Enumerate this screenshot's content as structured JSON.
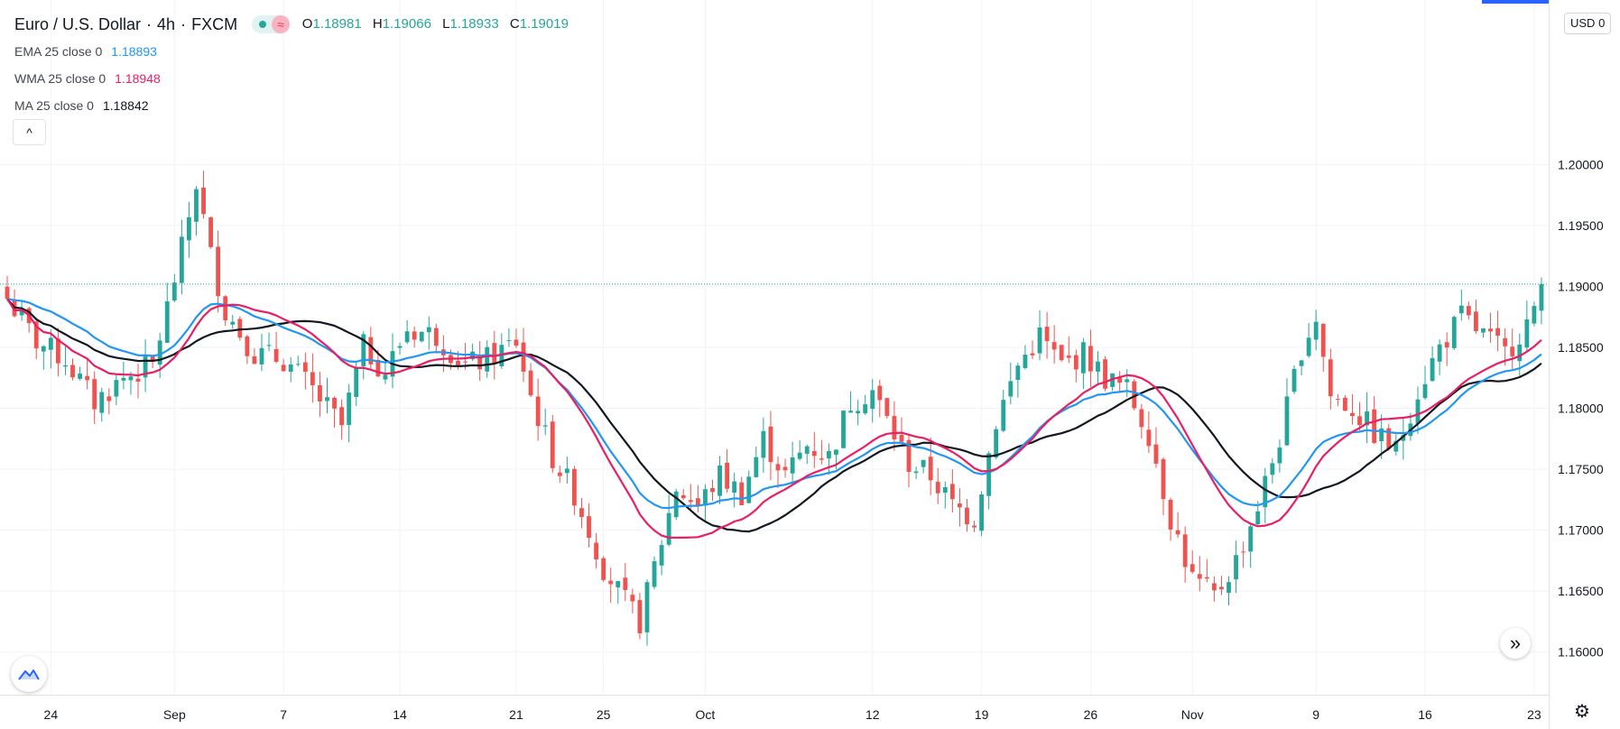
{
  "header": {
    "symbol": "Euro / U.S. Dollar",
    "separator_1": "·",
    "interval": "4h",
    "separator_2": "·",
    "exchange": "FXCM",
    "wave_icon": "≈",
    "ohlc": {
      "o_label": "O",
      "o": "1.18981",
      "h_label": "H",
      "h": "1.19066",
      "l_label": "L",
      "l": "1.18933",
      "c_label": "C",
      "c": "1.19019"
    }
  },
  "indicators": [
    {
      "label": "EMA 25 close 0",
      "value": "1.18893",
      "color": "#2196f3"
    },
    {
      "label": "WMA 25 close 0",
      "value": "1.18948",
      "color": "#e91e63"
    },
    {
      "label": "MA 25 close 0",
      "value": "1.18842",
      "color": "#131722"
    }
  ],
  "controls": {
    "collapse_icon": "chevron-up-icon",
    "collapse_glyph": "^",
    "scale_currency": "USD",
    "scale_suffix": "0",
    "scroll_icon": "double-chevron-right-icon",
    "scroll_glyph": "»",
    "settings_icon": "gear-icon",
    "settings_glyph": "⚙",
    "logo_icon": "tradingview-logo-icon"
  },
  "colors": {
    "up": "#26a69a",
    "down": "#ef5350",
    "ema": "#2196f3",
    "wma": "#e91e63",
    "ma": "#131722",
    "grid": "#f0f3fa",
    "accent": "#2962ff"
  },
  "chart_data": {
    "type": "candlestick",
    "title": "Euro / U.S. Dollar · 4h · FXCM",
    "grid": true,
    "price_line": 1.19019,
    "ylim": [
      1.1565,
      1.2135
    ],
    "y_ticks": [
      "1.20000",
      "1.19500",
      "1.19000",
      "1.18500",
      "1.18000",
      "1.17500",
      "1.17000",
      "1.16500",
      "1.16000"
    ],
    "x_ticks": [
      "24",
      "Sep",
      "7",
      "14",
      "21",
      "25",
      "Oct",
      "12",
      "19",
      "26",
      "Nov",
      "9",
      "16",
      "23"
    ],
    "x_tick_index": [
      6,
      23,
      38,
      54,
      70,
      82,
      96,
      119,
      134,
      149,
      163,
      180,
      195,
      210
    ],
    "candle_count": 212,
    "close_path": [
      [
        0,
        1.189
      ],
      [
        4,
        1.1855
      ],
      [
        8,
        1.184
      ],
      [
        12,
        1.1805
      ],
      [
        16,
        1.1825
      ],
      [
        20,
        1.1835
      ],
      [
        24,
        1.193
      ],
      [
        26,
        1.1985
      ],
      [
        28,
        1.1925
      ],
      [
        30,
        1.188
      ],
      [
        34,
        1.1845
      ],
      [
        38,
        1.184
      ],
      [
        42,
        1.1815
      ],
      [
        46,
        1.1785
      ],
      [
        49,
        1.185
      ],
      [
        52,
        1.183
      ],
      [
        55,
        1.1865
      ],
      [
        59,
        1.186
      ],
      [
        63,
        1.1835
      ],
      [
        66,
        1.184
      ],
      [
        70,
        1.1855
      ],
      [
        72,
        1.181
      ],
      [
        75,
        1.176
      ],
      [
        78,
        1.173
      ],
      [
        82,
        1.167
      ],
      [
        85,
        1.164
      ],
      [
        87,
        1.1625
      ],
      [
        89,
        1.167
      ],
      [
        92,
        1.1735
      ],
      [
        95,
        1.172
      ],
      [
        98,
        1.1745
      ],
      [
        101,
        1.173
      ],
      [
        104,
        1.1775
      ],
      [
        107,
        1.1745
      ],
      [
        110,
        1.177
      ],
      [
        113,
        1.176
      ],
      [
        116,
        1.1805
      ],
      [
        119,
        1.1815
      ],
      [
        121,
        1.179
      ],
      [
        124,
        1.1755
      ],
      [
        127,
        1.1745
      ],
      [
        130,
        1.172
      ],
      [
        133,
        1.171
      ],
      [
        136,
        1.179
      ],
      [
        139,
        1.1835
      ],
      [
        142,
        1.186
      ],
      [
        145,
        1.1835
      ],
      [
        148,
        1.1845
      ],
      [
        151,
        1.1825
      ],
      [
        154,
        1.1815
      ],
      [
        157,
        1.178
      ],
      [
        160,
        1.171
      ],
      [
        163,
        1.166
      ],
      [
        166,
        1.1645
      ],
      [
        169,
        1.1675
      ],
      [
        172,
        1.172
      ],
      [
        175,
        1.1775
      ],
      [
        178,
        1.185
      ],
      [
        180,
        1.1875
      ],
      [
        182,
        1.181
      ],
      [
        185,
        1.18
      ],
      [
        188,
        1.178
      ],
      [
        191,
        1.1765
      ],
      [
        194,
        1.1815
      ],
      [
        197,
        1.185
      ],
      [
        200,
        1.1875
      ],
      [
        203,
        1.186
      ],
      [
        206,
        1.1845
      ],
      [
        209,
        1.187
      ],
      [
        211,
        1.188
      ]
    ],
    "series": [
      {
        "name": "EMA 25 close 0",
        "type": "line",
        "color": "#2196f3",
        "last": 1.18893
      },
      {
        "name": "WMA 25 close 0",
        "type": "line",
        "color": "#e91e63",
        "last": 1.18948
      },
      {
        "name": "MA 25 close 0",
        "type": "line",
        "color": "#131722",
        "last": 1.18842
      }
    ]
  }
}
